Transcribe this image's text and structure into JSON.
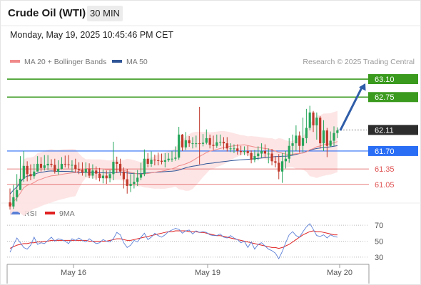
{
  "header": {
    "symbol": "Crude Oil (WTI)",
    "timeframe": "30 MIN",
    "timestamp": "Monday, May 19, 2025 10:45:46 PM CET"
  },
  "legend": {
    "ma20_label": "MA 20 + Bollinger Bands",
    "ma50_label": "MA 50",
    "rsi_label": "RSI",
    "ma9_label": "9MA"
  },
  "credit": "Research © 2025 Trading Central",
  "colors": {
    "bull": "#26a65b",
    "bear": "#c0392b",
    "bollinger_fill": "#fde2e2",
    "ma20": "#f08a8a",
    "ma50": "#2f5597",
    "target": "#3a9a1e",
    "pivot": "#2a6ef5",
    "support": "#e05555",
    "current": "#2d2d2d",
    "arrow": "#2f5da8",
    "rsi": "#5b7fd6",
    "rsi_ma": "#e02020"
  },
  "chart_data": [
    {
      "type": "candlestick",
      "ylim": [
        60.7,
        63.35
      ],
      "x_ticks": [
        "May 16",
        "May 19",
        "May 20"
      ],
      "levels": [
        {
          "label": "63.10",
          "value": 63.1,
          "kind": "target"
        },
        {
          "label": "62.75",
          "value": 62.75,
          "kind": "target"
        },
        {
          "label": "62.11",
          "value": 62.11,
          "kind": "current"
        },
        {
          "label": "61.70",
          "value": 61.7,
          "kind": "pivot"
        },
        {
          "label": "61.35",
          "value": 61.35,
          "kind": "support"
        },
        {
          "label": "61.05",
          "value": 61.05,
          "kind": "support"
        }
      ],
      "series": [
        {
          "name": "MA 20 + Bollinger Bands",
          "kind": "ma20_bollinger"
        },
        {
          "name": "MA 50",
          "kind": "ma50"
        }
      ],
      "closes": [
        60.62,
        60.8,
        60.94,
        61.16,
        61.41,
        61.25,
        61.21,
        61.3,
        61.45,
        61.37,
        61.42,
        61.45,
        61.43,
        61.3,
        61.35,
        61.45,
        61.44,
        61.43,
        61.43,
        61.35,
        61.33,
        61.28,
        61.35,
        61.22,
        61.32,
        61.26,
        61.17,
        61.22,
        61.17,
        61.25,
        61.49,
        61.45,
        61.3,
        61.15,
        61.02,
        61.06,
        61.1,
        61.18,
        61.25,
        61.55,
        61.45,
        61.53,
        61.52,
        61.51,
        61.49,
        61.52,
        61.55,
        61.55,
        61.57,
        62.02,
        61.77,
        61.91,
        61.85,
        61.85,
        61.85,
        61.84,
        61.86,
        61.95,
        61.82,
        61.8,
        61.87,
        61.88,
        61.85,
        61.75,
        61.75,
        61.75,
        61.7,
        61.68,
        61.7,
        61.66,
        61.53,
        61.6,
        61.65,
        61.7,
        61.65,
        61.65,
        61.5,
        61.47,
        61.3,
        61.5,
        61.55,
        61.8,
        61.85,
        62.0,
        61.8,
        61.95,
        62.15,
        62.45,
        62.2,
        62.35,
        61.85,
        62.1,
        61.8,
        61.9,
        62.05,
        62.1
      ],
      "highs": [
        60.97,
        61.04,
        61.25,
        61.6,
        61.7,
        61.5,
        61.44,
        61.45,
        61.6,
        61.58,
        61.62,
        61.62,
        61.54,
        61.55,
        61.52,
        61.58,
        61.61,
        61.62,
        61.52,
        61.55,
        61.48,
        61.48,
        61.48,
        61.46,
        61.44,
        61.4,
        61.37,
        61.34,
        61.32,
        61.33,
        61.88,
        61.59,
        61.55,
        61.38,
        61.35,
        61.25,
        61.28,
        61.33,
        61.47,
        61.73,
        61.66,
        61.69,
        61.63,
        61.67,
        61.65,
        61.66,
        61.66,
        61.7,
        61.79,
        62.17,
        62.03,
        62.07,
        61.99,
        61.97,
        62.0,
        62.56,
        62.03,
        62.12,
        62.02,
        62.0,
        62.02,
        62.02,
        61.97,
        61.97,
        61.85,
        61.83,
        61.83,
        61.8,
        61.79,
        61.8,
        61.71,
        61.72,
        61.79,
        61.85,
        61.83,
        61.75,
        61.74,
        61.6,
        61.64,
        61.66,
        61.7,
        61.95,
        62.02,
        62.2,
        62.08,
        62.35,
        62.52,
        62.58,
        62.48,
        62.45,
        62.38,
        62.3,
        62.15,
        62.08,
        62.18,
        62.16
      ],
      "lows": [
        60.56,
        60.57,
        60.72,
        60.95,
        61.1,
        61.11,
        61.13,
        61.16,
        61.3,
        61.3,
        61.32,
        61.33,
        61.38,
        61.26,
        61.24,
        61.34,
        61.38,
        61.36,
        61.29,
        61.28,
        61.25,
        61.22,
        61.2,
        61.17,
        61.16,
        61.14,
        61.11,
        61.07,
        61.06,
        61.09,
        61.13,
        61.27,
        61.22,
        60.97,
        60.87,
        60.9,
        60.97,
        61.02,
        61.13,
        61.21,
        61.38,
        61.39,
        61.42,
        61.42,
        61.44,
        61.38,
        61.49,
        61.49,
        61.51,
        61.53,
        61.7,
        61.72,
        61.78,
        61.75,
        61.77,
        61.44,
        61.79,
        61.83,
        61.75,
        61.72,
        61.76,
        61.8,
        61.73,
        61.69,
        61.68,
        61.66,
        61.63,
        61.62,
        61.62,
        61.6,
        61.46,
        61.48,
        61.52,
        61.57,
        61.57,
        61.46,
        61.42,
        61.38,
        61.15,
        61.08,
        61.36,
        61.47,
        61.62,
        61.7,
        61.67,
        61.68,
        61.85,
        62.1,
        62.07,
        61.92,
        61.75,
        61.7,
        61.58,
        61.78,
        61.8,
        61.95
      ]
    },
    {
      "type": "line",
      "series": [
        {
          "name": "RSI"
        },
        {
          "name": "9MA"
        }
      ],
      "y_ticks": [
        70,
        50,
        30
      ],
      "ylim": [
        20,
        80
      ],
      "rsi": [
        36,
        45,
        54,
        48,
        42,
        40,
        45,
        55,
        46,
        48,
        47,
        51,
        55,
        50,
        53,
        52,
        50,
        47,
        53,
        51,
        54,
        51,
        49,
        53,
        50,
        47,
        48,
        52,
        50,
        49,
        53,
        61,
        58,
        48,
        42,
        45,
        51,
        49,
        55,
        60,
        52,
        55,
        60,
        57,
        55,
        58,
        62,
        64,
        66,
        65,
        60,
        63,
        64,
        59,
        63,
        61,
        62,
        61,
        58,
        57,
        57,
        59,
        55,
        54,
        57,
        54,
        52,
        48,
        50,
        42,
        49,
        40,
        46,
        48,
        44,
        40,
        38,
        35,
        28,
        37,
        48,
        58,
        62,
        57,
        55,
        62,
        68,
        72,
        65,
        57,
        56,
        58,
        54,
        58,
        56,
        55
      ],
      "ma9": [
        41,
        43,
        45,
        46,
        47,
        47,
        48,
        48,
        49,
        49,
        50,
        50,
        51,
        51,
        51,
        51,
        51,
        51,
        51,
        51,
        51,
        51,
        51,
        50,
        50,
        50,
        50,
        50,
        50,
        51,
        52,
        53,
        53,
        52,
        51,
        51,
        52,
        53,
        54,
        55,
        56,
        57,
        58,
        59,
        60,
        61,
        62,
        62,
        63,
        63,
        63,
        63,
        62,
        62,
        62,
        61,
        61,
        60,
        59,
        58,
        57,
        57,
        56,
        55,
        54,
        53,
        52,
        51,
        50,
        49,
        48,
        47,
        46,
        45,
        44,
        43,
        42,
        42,
        41,
        42,
        44,
        46,
        49,
        52,
        55,
        58,
        60,
        62,
        63,
        62,
        62,
        61,
        60,
        59,
        58,
        58
      ]
    }
  ]
}
